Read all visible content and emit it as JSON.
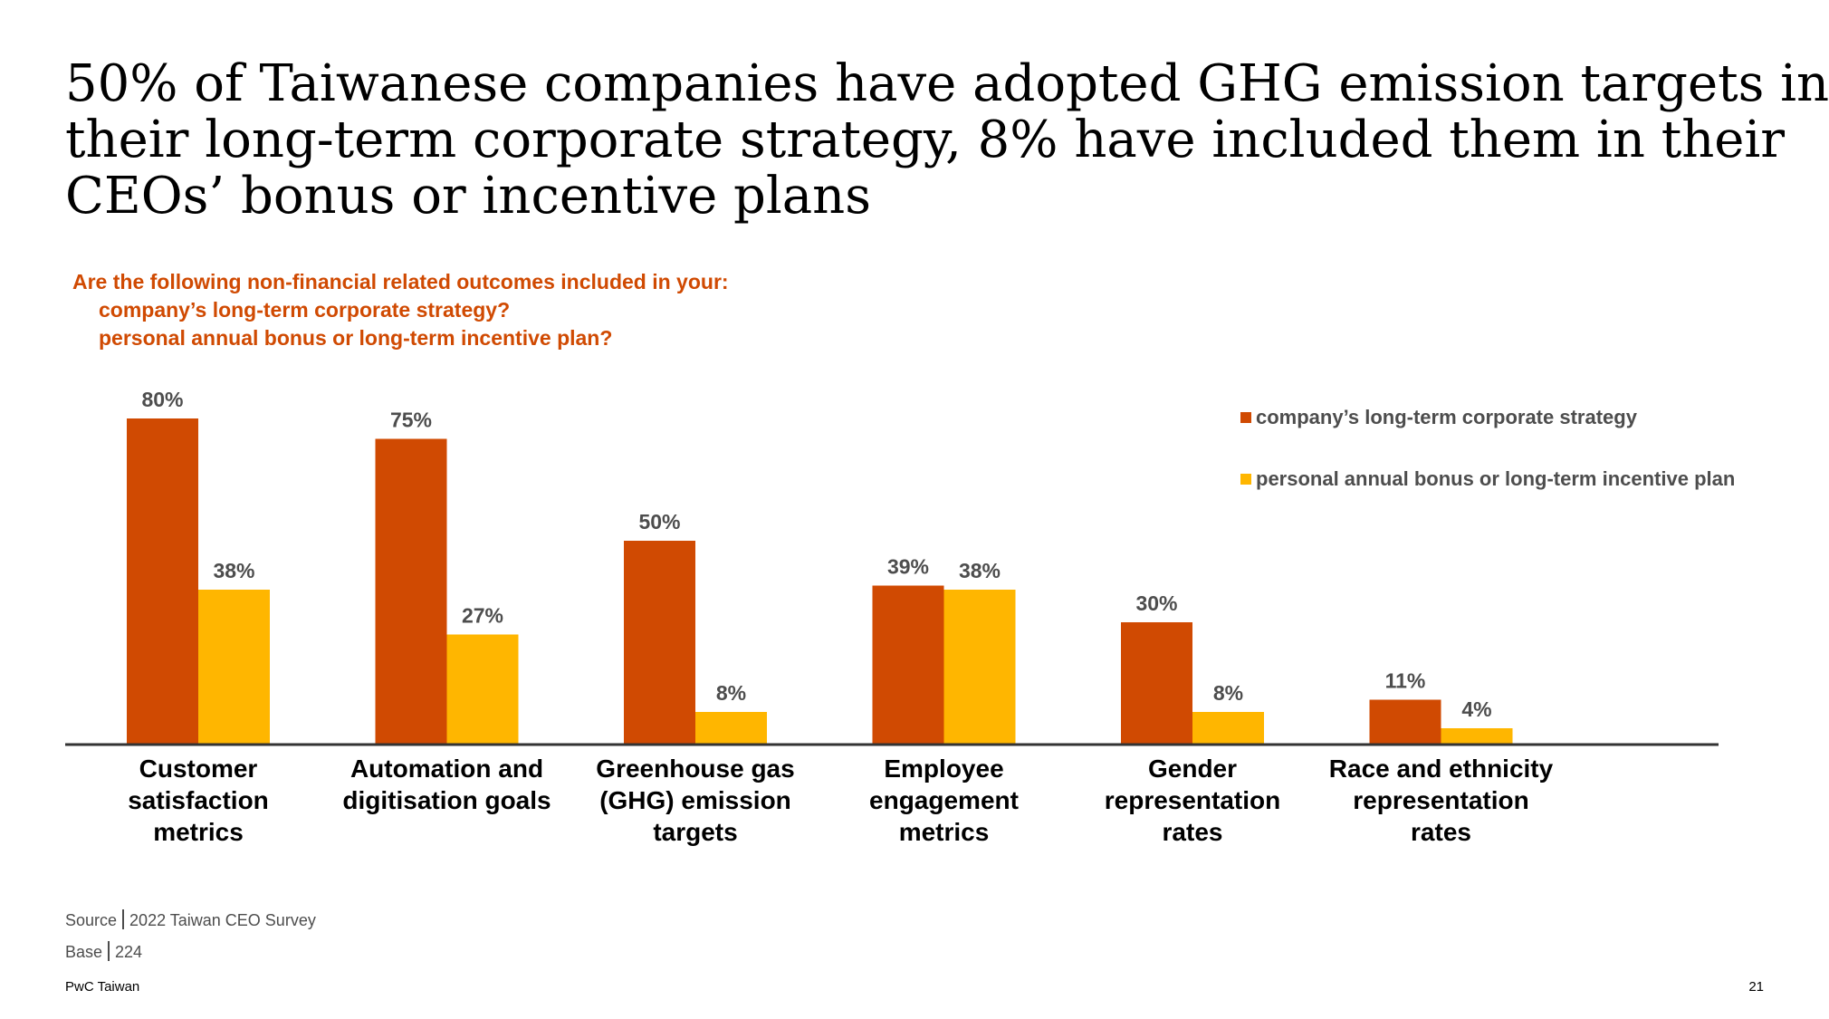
{
  "title_lines": [
    "50% of Taiwanese companies have adopted GHG emission targets in",
    "their long-term corporate strategy, 8% have included them in their",
    "CEOs’ bonus or incentive plans"
  ],
  "question": {
    "line1": "Are the following non-financial related outcomes included in your:",
    "line2": "company’s long-term corporate strategy?",
    "line3": "personal annual bonus or long-term incentive plan?"
  },
  "colors": {
    "series1": "#d04a02",
    "series2": "#ffb600",
    "axis": "#333333",
    "label": "#4d4d4d",
    "question": "#d04a02"
  },
  "chart_data": {
    "type": "bar",
    "title": "",
    "xlabel": "",
    "ylabel": "",
    "ylim": [
      0,
      100
    ],
    "grid": false,
    "legend_position": "top-right",
    "categories": [
      [
        "Customer",
        "satisfaction",
        "metrics"
      ],
      [
        "Automation and",
        "digitisation goals"
      ],
      [
        "Greenhouse gas",
        "(GHG) emission",
        "targets"
      ],
      [
        "Employee",
        "engagement",
        "metrics"
      ],
      [
        "Gender",
        "representation",
        "rates"
      ],
      [
        "Race and ethnicity",
        "representation",
        "rates"
      ]
    ],
    "series": [
      {
        "name": "company’s long-term corporate strategy",
        "values": [
          80,
          75,
          50,
          39,
          30,
          11
        ],
        "labels": [
          "80%",
          "75%",
          "50%",
          "39%",
          "30%",
          "11%"
        ]
      },
      {
        "name": "personal annual bonus or long-term incentive plan",
        "values": [
          38,
          27,
          8,
          38,
          8,
          4
        ],
        "labels": [
          "38%",
          "27%",
          "8%",
          "38%",
          "8%",
          "4%"
        ]
      }
    ]
  },
  "footer": {
    "source_label": "Source",
    "source_value": "2022 Taiwan CEO Survey",
    "base_label": "Base",
    "base_value": "224",
    "brand": "PwC Taiwan",
    "page_number": "21"
  }
}
